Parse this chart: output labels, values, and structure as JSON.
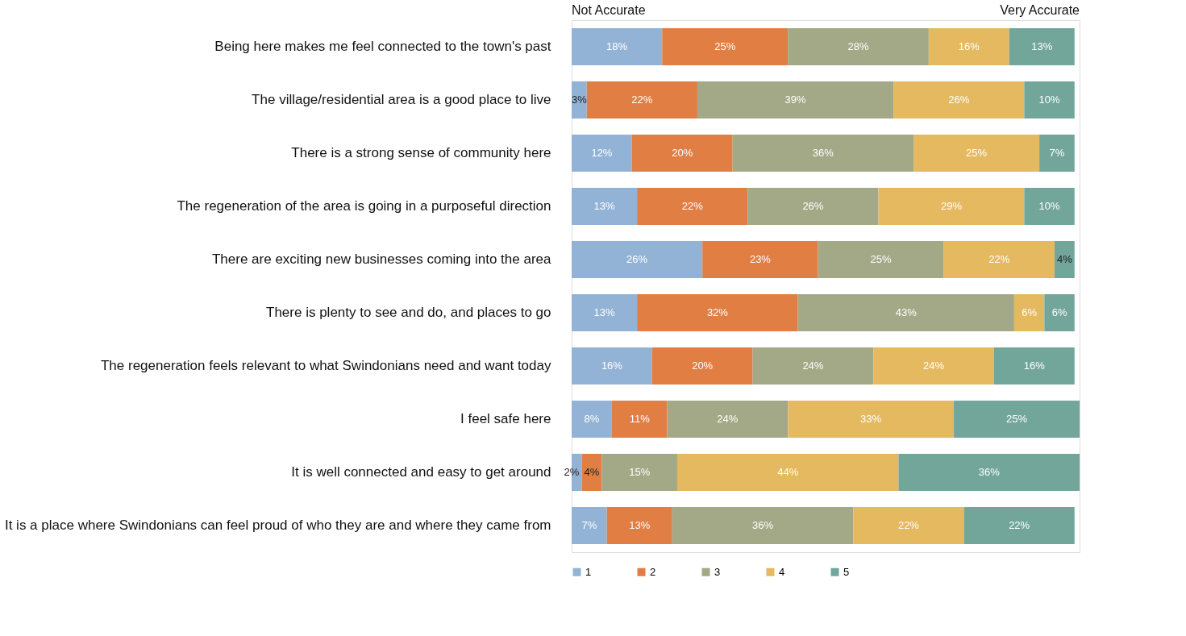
{
  "chart_data": {
    "type": "bar",
    "orientation": "horizontal",
    "stacked": true,
    "categories": [
      "Being here makes me feel connected to the town's past",
      "The village/residential area is a good place to live",
      "There is a strong sense of community here",
      "The regeneration of the area is going in a purposeful direction",
      "There are exciting new businesses coming into the area",
      "There is plenty to see and do, and places to go",
      "The regeneration feels relevant to what Swindonians need and want today",
      "I feel safe here",
      "It is well connected and easy to get around",
      "It is a place where Swindonians can feel proud of who they are and where they came from"
    ],
    "xlim": [
      0,
      101
    ],
    "tick_labels": "y",
    "legend": "bottom",
    "annotations": [
      "Not Accurate",
      "Very Accurate"
    ],
    "series": [
      {
        "name": "1",
        "color": "#93b3d6",
        "values": [
          18,
          3,
          12,
          13,
          26,
          13,
          16,
          8,
          2,
          7
        ],
        "value_labels": [
          "18%",
          "3%",
          "12%",
          "13%",
          "26%",
          "13%",
          "16%",
          "8%",
          "2%",
          "7%"
        ]
      },
      {
        "name": "2",
        "color": "#e07e44",
        "values": [
          25,
          22,
          20,
          22,
          23,
          32,
          20,
          11,
          4,
          13
        ],
        "value_labels": [
          "25%",
          "22%",
          "20%",
          "22%",
          "23%",
          "32%",
          "20%",
          "11%",
          "4%",
          "13%"
        ]
      },
      {
        "name": "3",
        "color": "#a3a986",
        "values": [
          28,
          39,
          36,
          26,
          25,
          43,
          24,
          24,
          15,
          36
        ],
        "value_labels": [
          "28%",
          "39%",
          "36%",
          "26%",
          "25%",
          "43%",
          "24%",
          "24%",
          "15%",
          "36%"
        ]
      },
      {
        "name": "4",
        "color": "#e5b95f",
        "values": [
          16,
          26,
          25,
          29,
          22,
          6,
          24,
          33,
          44,
          22
        ],
        "value_labels": [
          "16%",
          "26%",
          "25%",
          "29%",
          "22%",
          "6%",
          "24%",
          "33%",
          "44%",
          "22%"
        ]
      },
      {
        "name": "5",
        "color": "#72a69b",
        "values": [
          13,
          10,
          7,
          10,
          4,
          6,
          16,
          25,
          36,
          22
        ],
        "value_labels": [
          "13%",
          "10%",
          "7%",
          "10%",
          "4%",
          "6%",
          "16%",
          "25%",
          "36%",
          "22%"
        ]
      }
    ]
  }
}
